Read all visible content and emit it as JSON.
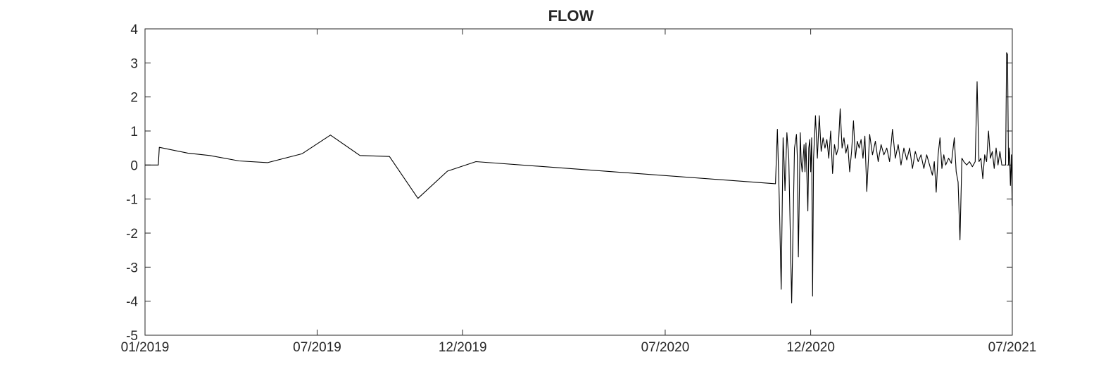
{
  "chart_data": {
    "type": "line",
    "title": "FLOW",
    "xlabel": "",
    "ylabel": "",
    "xlim": [
      "2019-01",
      "2021-07"
    ],
    "ylim": [
      -5,
      4
    ],
    "grid": false,
    "x_ticks": [
      "01/2019",
      "07/2019",
      "12/2019",
      "07/2020",
      "12/2020",
      "07/2021"
    ],
    "y_ticks": [
      "4",
      "3",
      "2",
      "1",
      "0",
      "-1",
      "-2",
      "-3",
      "-4",
      "-5"
    ],
    "series": [
      {
        "color": "#000000",
        "points": [
          [
            "2019-01-01",
            0
          ],
          [
            "2019-01-15",
            0
          ],
          [
            "2019-01-16",
            0.52
          ],
          [
            "2019-02-15",
            0.35
          ],
          [
            "2019-03-10",
            0.28
          ],
          [
            "2019-04-10",
            0.12
          ],
          [
            "2019-05-10",
            0.07
          ],
          [
            "2019-06-15",
            0.33
          ],
          [
            "2019-07-15",
            0.88
          ],
          [
            "2019-08-15",
            0.28
          ],
          [
            "2019-09-15",
            0.25
          ],
          [
            "2019-10-15",
            -0.98
          ],
          [
            "2019-11-15",
            -0.18
          ],
          [
            "2019-12-15",
            0.1
          ],
          [
            "2020-10-25",
            -0.55
          ],
          [
            "2020-10-27",
            1.05
          ],
          [
            "2020-10-29",
            -1.0
          ],
          [
            "2020-10-31",
            -3.65
          ],
          [
            "2020-11-02",
            0.8
          ],
          [
            "2020-11-03",
            0.1
          ],
          [
            "2020-11-04",
            -0.75
          ],
          [
            "2020-11-06",
            0.95
          ],
          [
            "2020-11-08",
            0.2
          ],
          [
            "2020-11-11",
            -4.05
          ],
          [
            "2020-11-13",
            -1.0
          ],
          [
            "2020-11-14",
            0.5
          ],
          [
            "2020-11-16",
            0.9
          ],
          [
            "2020-11-17",
            0.2
          ],
          [
            "2020-11-18",
            -2.7
          ],
          [
            "2020-11-20",
            0.95
          ],
          [
            "2020-11-21",
            0.1
          ],
          [
            "2020-11-22",
            -0.2
          ],
          [
            "2020-11-24",
            0.6
          ],
          [
            "2020-11-25",
            -0.2
          ],
          [
            "2020-11-26",
            0.65
          ],
          [
            "2020-11-28",
            -1.35
          ],
          [
            "2020-11-29",
            0.5
          ],
          [
            "2020-11-30",
            0.75
          ],
          [
            "2020-12-01",
            -0.2
          ],
          [
            "2020-12-02",
            0.8
          ],
          [
            "2020-12-03",
            -3.85
          ],
          [
            "2020-12-04",
            0.2
          ],
          [
            "2020-12-06",
            1.45
          ],
          [
            "2020-12-08",
            0.2
          ],
          [
            "2020-12-10",
            1.45
          ],
          [
            "2020-12-12",
            0.4
          ],
          [
            "2020-12-14",
            0.8
          ],
          [
            "2020-12-16",
            0.5
          ],
          [
            "2020-12-18",
            0.75
          ],
          [
            "2020-12-20",
            0.2
          ],
          [
            "2020-12-22",
            1.0
          ],
          [
            "2020-12-24",
            -0.25
          ],
          [
            "2020-12-26",
            0.6
          ],
          [
            "2020-12-28",
            0.3
          ],
          [
            "2020-12-30",
            0.5
          ],
          [
            "2021-01-01",
            1.65
          ],
          [
            "2021-01-03",
            0.5
          ],
          [
            "2021-01-05",
            0.8
          ],
          [
            "2021-01-07",
            0.35
          ],
          [
            "2021-01-09",
            0.6
          ],
          [
            "2021-01-11",
            -0.2
          ],
          [
            "2021-01-13",
            0.4
          ],
          [
            "2021-01-15",
            1.3
          ],
          [
            "2021-01-17",
            0.2
          ],
          [
            "2021-01-19",
            0.7
          ],
          [
            "2021-01-21",
            0.5
          ],
          [
            "2021-01-23",
            0.75
          ],
          [
            "2021-01-25",
            0.2
          ],
          [
            "2021-01-27",
            0.85
          ],
          [
            "2021-01-29",
            -0.78
          ],
          [
            "2021-02-01",
            0.9
          ],
          [
            "2021-02-04",
            0.3
          ],
          [
            "2021-02-07",
            0.7
          ],
          [
            "2021-02-10",
            0.1
          ],
          [
            "2021-02-13",
            0.6
          ],
          [
            "2021-02-16",
            0.3
          ],
          [
            "2021-02-19",
            0.5
          ],
          [
            "2021-02-22",
            0.1
          ],
          [
            "2021-02-25",
            1.05
          ],
          [
            "2021-02-28",
            0.2
          ],
          [
            "2021-03-03",
            0.6
          ],
          [
            "2021-03-06",
            0.0
          ],
          [
            "2021-03-09",
            0.5
          ],
          [
            "2021-03-12",
            0.15
          ],
          [
            "2021-03-15",
            0.5
          ],
          [
            "2021-03-18",
            -0.1
          ],
          [
            "2021-03-21",
            0.4
          ],
          [
            "2021-03-24",
            0.1
          ],
          [
            "2021-03-27",
            0.3
          ],
          [
            "2021-03-30",
            -0.1
          ],
          [
            "2021-04-02",
            0.3
          ],
          [
            "2021-04-05",
            0.0
          ],
          [
            "2021-04-08",
            -0.3
          ],
          [
            "2021-04-10",
            0.1
          ],
          [
            "2021-04-12",
            -0.8
          ],
          [
            "2021-04-14",
            0.3
          ],
          [
            "2021-04-16",
            0.8
          ],
          [
            "2021-04-18",
            -0.1
          ],
          [
            "2021-04-20",
            0.3
          ],
          [
            "2021-04-22",
            0.0
          ],
          [
            "2021-04-25",
            0.2
          ],
          [
            "2021-04-28",
            0.05
          ],
          [
            "2021-05-01",
            0.8
          ],
          [
            "2021-05-03",
            -0.2
          ],
          [
            "2021-05-05",
            -0.5
          ],
          [
            "2021-05-07",
            -2.2
          ],
          [
            "2021-05-09",
            0.2
          ],
          [
            "2021-05-11",
            0.1
          ],
          [
            "2021-05-14",
            0.0
          ],
          [
            "2021-05-17",
            0.1
          ],
          [
            "2021-05-20",
            -0.05
          ],
          [
            "2021-05-23",
            0.1
          ],
          [
            "2021-05-25",
            2.45
          ],
          [
            "2021-05-27",
            0.1
          ],
          [
            "2021-05-29",
            0.2
          ],
          [
            "2021-05-31",
            -0.4
          ],
          [
            "2021-06-02",
            0.3
          ],
          [
            "2021-06-04",
            0.1
          ],
          [
            "2021-06-06",
            1.0
          ],
          [
            "2021-06-08",
            0.2
          ],
          [
            "2021-06-10",
            0.4
          ],
          [
            "2021-06-12",
            -0.1
          ],
          [
            "2021-06-14",
            0.5
          ],
          [
            "2021-06-16",
            0.0
          ],
          [
            "2021-06-18",
            0.4
          ],
          [
            "2021-06-20",
            0.0
          ],
          [
            "2021-06-22",
            0.0
          ],
          [
            "2021-06-24",
            0.0
          ],
          [
            "2021-06-25",
            3.3
          ],
          [
            "2021-06-26",
            3.25
          ],
          [
            "2021-06-27",
            0.0
          ],
          [
            "2021-06-28",
            0.5
          ],
          [
            "2021-06-29",
            -0.6
          ],
          [
            "2021-06-30",
            0.3
          ],
          [
            "2021-07-01",
            -1.2
          ]
        ]
      }
    ]
  }
}
